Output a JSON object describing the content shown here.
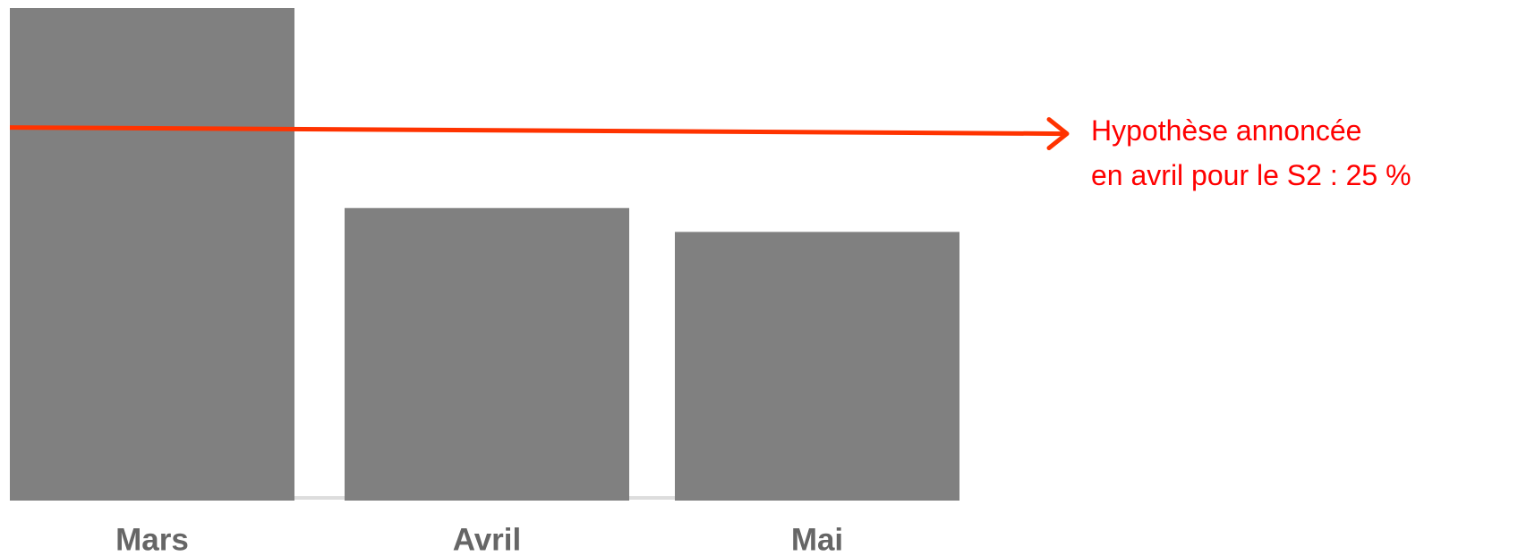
{
  "chart_data": {
    "type": "bar",
    "categories": [
      "Mars",
      "Avril",
      "Mai"
    ],
    "values": [
      33,
      19.6,
      18
    ],
    "color": "#808080",
    "ylim": [
      0,
      33
    ],
    "reference_line": {
      "value": 25,
      "color": "#ff3300",
      "annotation": [
        "Hypothèse annoncée",
        "en avril pour le S2 : 25 %"
      ]
    }
  }
}
